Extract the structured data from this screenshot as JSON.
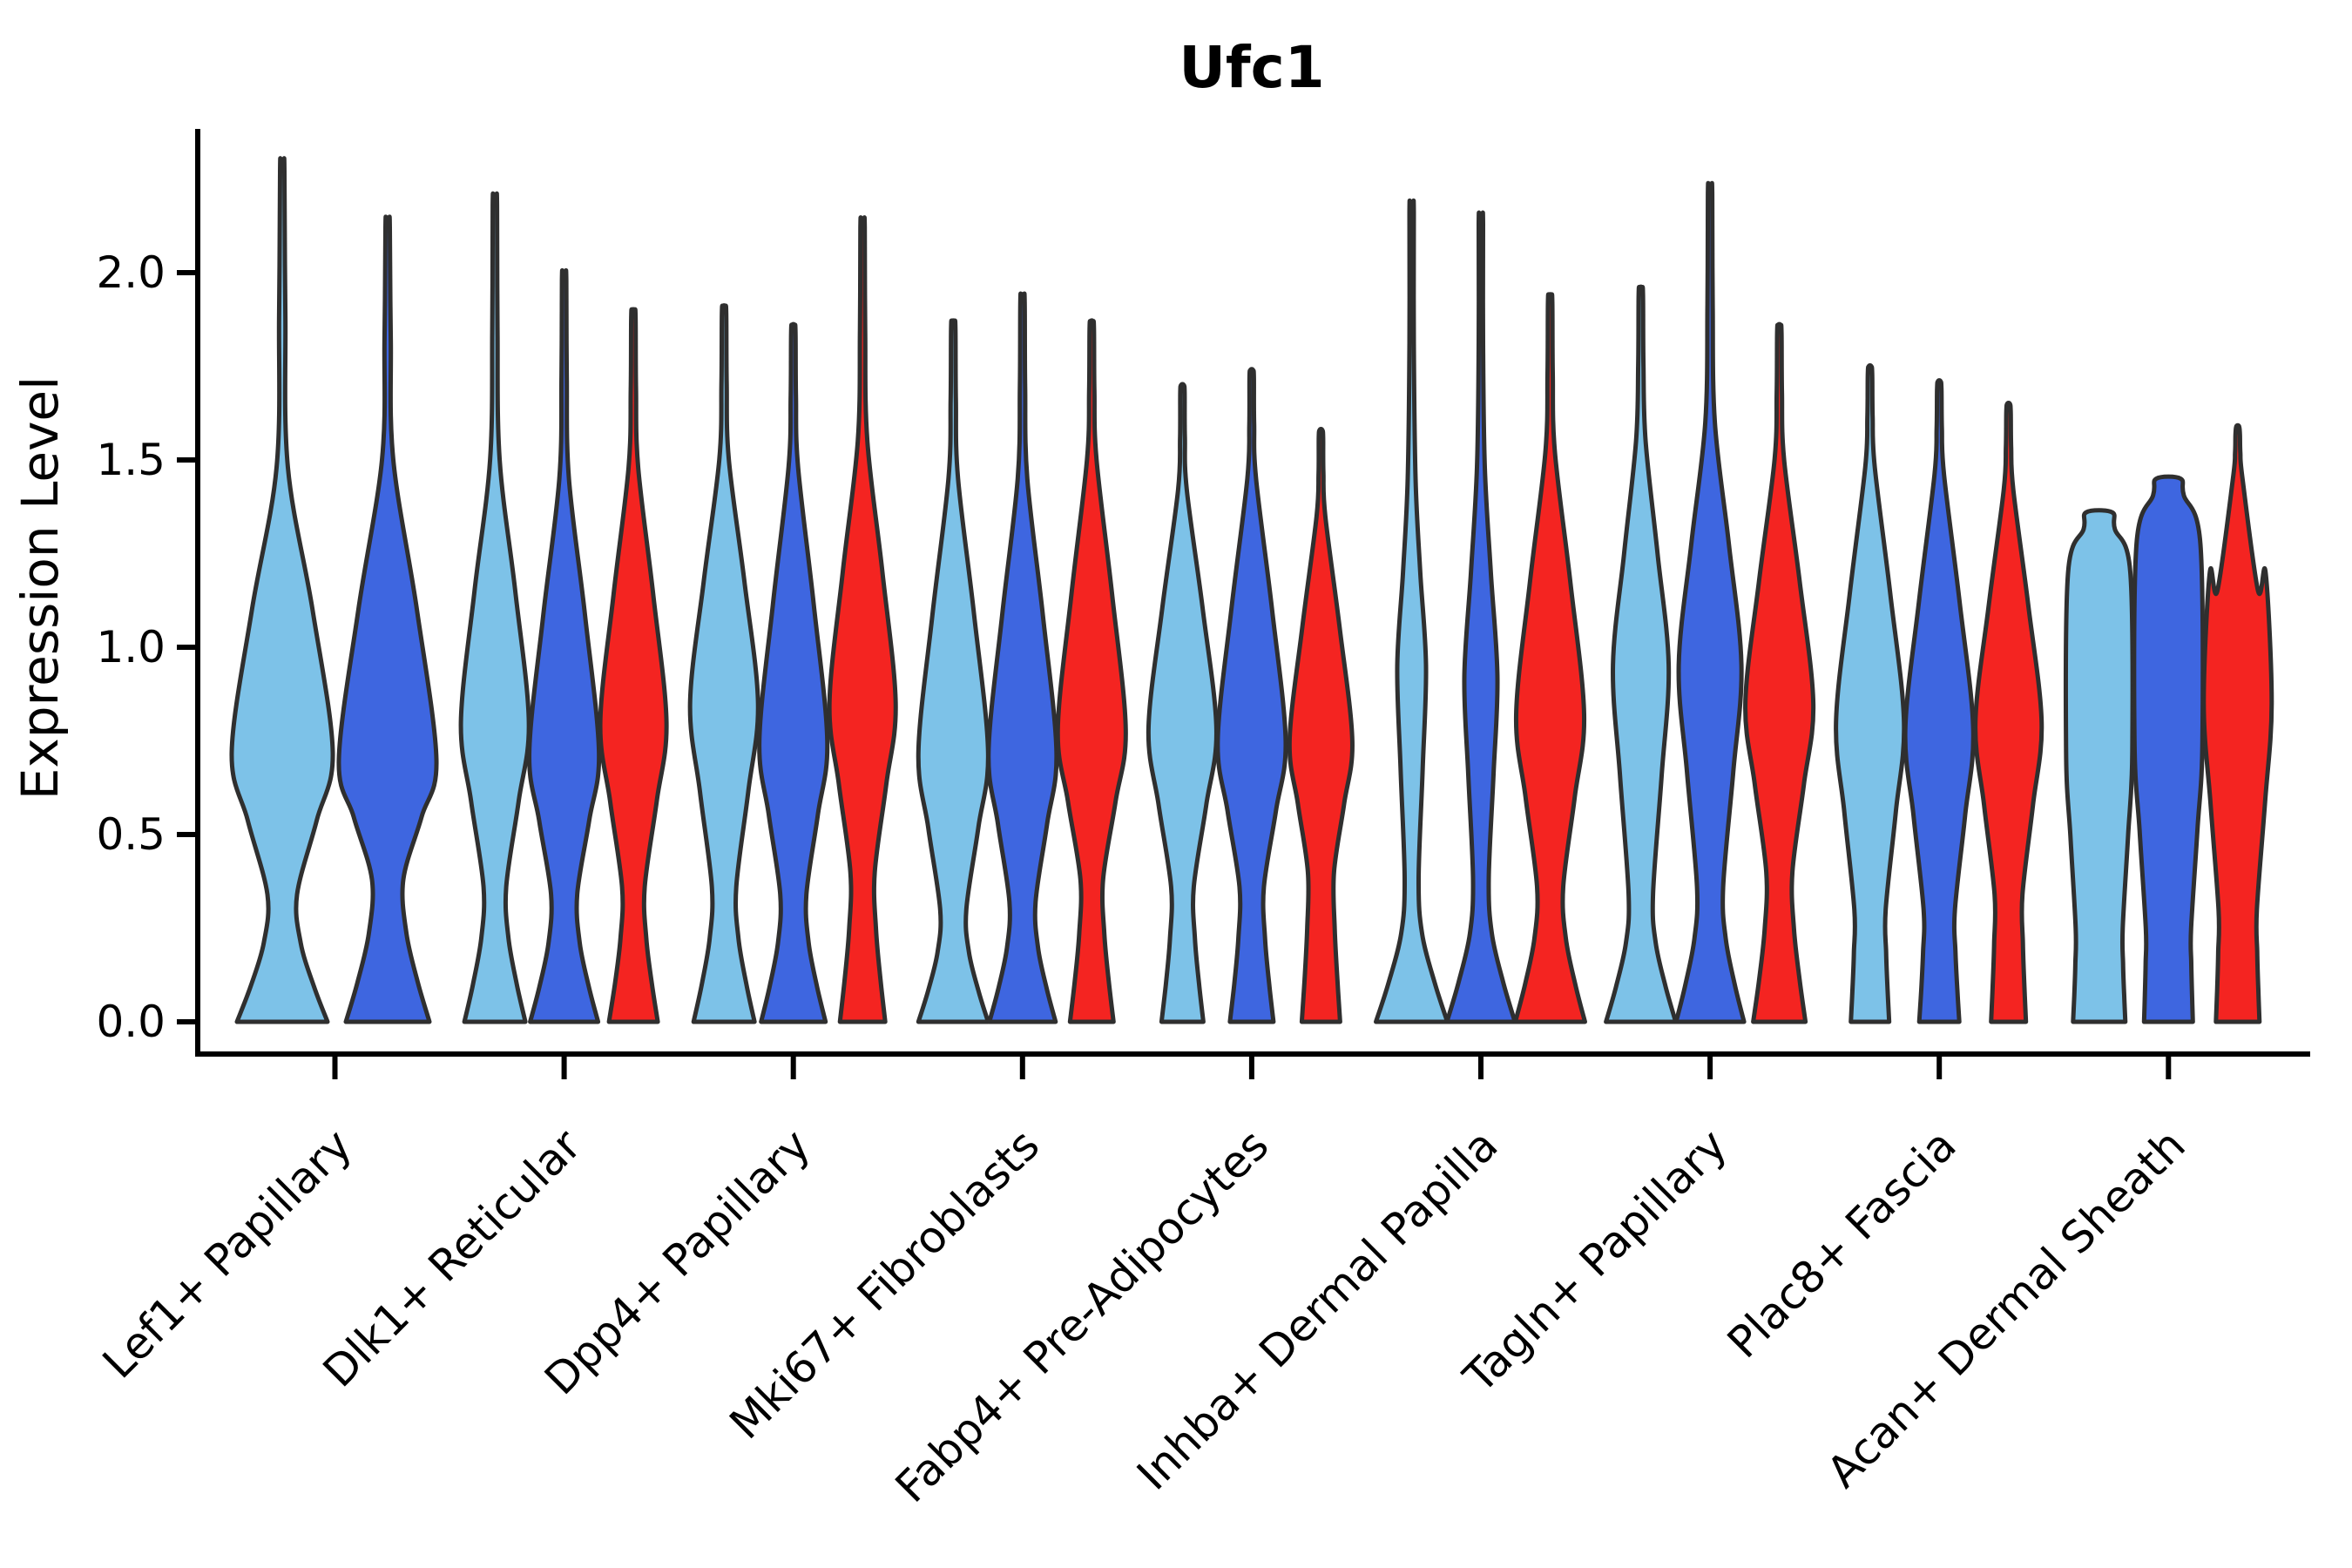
{
  "title": "Ufc1",
  "ylabel": "Expression Level",
  "yticks": [
    "0.0",
    "0.5",
    "1.0",
    "1.5",
    "2.0"
  ],
  "ytick_values": [
    0.0,
    0.5,
    1.0,
    1.5,
    2.0
  ],
  "categories": [
    "Lef1+ Papillary",
    "Dlk1+ Reticular",
    "Dpp4+ Papillary",
    "Mki67+ Fibroblasts",
    "Fabp4+ Pre-Adipocytes",
    "Inhba+ Dermal Papilla",
    "Tagln+ Papillary",
    "Plac8+ Fascia",
    "Acan+ Dermal Sheath"
  ],
  "colors": {
    "light_blue": "#7DC2E8",
    "blue": "#3E66E0",
    "red": "#F42421",
    "stroke": "#2F2F2F",
    "axis": "#000000"
  },
  "chart_data": {
    "type": "violin",
    "title": "Ufc1",
    "xlabel": "",
    "ylabel": "Expression Level",
    "ylim": [
      -0.09,
      2.38
    ],
    "grid": false,
    "legend": null,
    "series_order": [
      "light_blue",
      "blue",
      "red"
    ],
    "categories": [
      "Lef1+ Papillary",
      "Dlk1+ Reticular",
      "Dpp4+ Papillary",
      "Mki67+ Fibroblasts",
      "Fabp4+ Pre-Adipocytes",
      "Inhba+ Dermal Papilla",
      "Tagln+ Papillary",
      "Plac8+ Fascia",
      "Acan+ Dermal Sheath"
    ],
    "violins": [
      {
        "category": 0,
        "series": 0,
        "max": 2.29,
        "profile": {
          "base": 104,
          "neckV": 0.34,
          "neckW": 34,
          "bulgeV": 0.72,
          "W": 116,
          "tailStart": 1.48,
          "tailW": 13
        }
      },
      {
        "category": 0,
        "series": 1,
        "max": 2.14,
        "profile": {
          "base": 96,
          "neckV": 0.38,
          "neckW": 36,
          "bulgeV": 0.7,
          "W": 112,
          "tailStart": 1.5,
          "tailW": 13
        }
      },
      {
        "category": 1,
        "series": 0,
        "max": 2.2,
        "profile": {
          "base": 70,
          "neckV": 0.36,
          "neckW": 26,
          "bulgeV": 0.8,
          "W": 78,
          "tailStart": 1.5,
          "tailW": 11
        }
      },
      {
        "category": 1,
        "series": 1,
        "max": 2.0,
        "profile": {
          "base": 78,
          "neckV": 0.34,
          "neckW": 30,
          "bulgeV": 0.72,
          "W": 80,
          "tailStart": 1.45,
          "tailW": 11
        }
      },
      {
        "category": 1,
        "series": 2,
        "max": 1.9,
        "profile": {
          "base": 56,
          "neckV": 0.36,
          "neckW": 26,
          "bulgeV": 0.8,
          "W": 76,
          "tailStart": 1.48,
          "tailW": 11
        }
      },
      {
        "category": 2,
        "series": 0,
        "max": 1.91,
        "profile": {
          "base": 70,
          "neckV": 0.36,
          "neckW": 28,
          "bulgeV": 0.85,
          "W": 78,
          "tailStart": 1.5,
          "tailW": 11
        }
      },
      {
        "category": 2,
        "series": 1,
        "max": 1.86,
        "profile": {
          "base": 74,
          "neckV": 0.34,
          "neckW": 30,
          "bulgeV": 0.75,
          "W": 78,
          "tailStart": 1.48,
          "tailW": 11
        }
      },
      {
        "category": 2,
        "series": 2,
        "max": 2.14,
        "profile": {
          "base": 52,
          "neckV": 0.4,
          "neckW": 28,
          "bulgeV": 0.85,
          "W": 76,
          "tailStart": 1.55,
          "tailW": 11
        }
      },
      {
        "category": 3,
        "series": 0,
        "max": 1.87,
        "profile": {
          "base": 80,
          "neckV": 0.3,
          "neckW": 30,
          "bulgeV": 0.72,
          "W": 80,
          "tailStart": 1.45,
          "tailW": 11
        }
      },
      {
        "category": 3,
        "series": 1,
        "max": 1.94,
        "profile": {
          "base": 76,
          "neckV": 0.32,
          "neckW": 30,
          "bulgeV": 0.72,
          "W": 78,
          "tailStart": 1.45,
          "tailW": 11
        }
      },
      {
        "category": 3,
        "series": 2,
        "max": 1.87,
        "profile": {
          "base": 50,
          "neckV": 0.38,
          "neckW": 26,
          "bulgeV": 0.78,
          "W": 78,
          "tailStart": 1.5,
          "tailW": 11
        }
      },
      {
        "category": 4,
        "series": 0,
        "max": 1.7,
        "profile": {
          "base": 48,
          "neckV": 0.36,
          "neckW": 26,
          "bulgeV": 0.78,
          "W": 78,
          "tailStart": 1.42,
          "tailW": 10
        }
      },
      {
        "category": 4,
        "series": 1,
        "max": 1.74,
        "profile": {
          "base": 50,
          "neckV": 0.36,
          "neckW": 28,
          "bulgeV": 0.75,
          "W": 78,
          "tailStart": 1.45,
          "tailW": 10
        }
      },
      {
        "category": 4,
        "series": 2,
        "max": 1.58,
        "profile": {
          "base": 44,
          "neckV": 0.4,
          "neckW": 30,
          "bulgeV": 0.75,
          "W": 72,
          "tailStart": 1.35,
          "tailW": 10
        }
      },
      {
        "category": 5,
        "series": 0,
        "max": 2.18,
        "profile": {
          "base": 82,
          "neckV": 0.38,
          "neckW": 16,
          "bulgeV": 0.95,
          "W": 33,
          "tailStart": 1.45,
          "tailW": 9
        }
      },
      {
        "category": 5,
        "series": 1,
        "max": 2.15,
        "profile": {
          "base": 78,
          "neckV": 0.38,
          "neckW": 18,
          "bulgeV": 0.92,
          "W": 38,
          "tailStart": 1.48,
          "tailW": 9
        }
      },
      {
        "category": 5,
        "series": 2,
        "max": 1.94,
        "profile": {
          "base": 80,
          "neckV": 0.36,
          "neckW": 30,
          "bulgeV": 0.82,
          "W": 78,
          "tailStart": 1.52,
          "tailW": 11
        }
      },
      {
        "category": 6,
        "series": 0,
        "max": 1.96,
        "profile": {
          "base": 80,
          "neckV": 0.34,
          "neckW": 28,
          "bulgeV": 0.95,
          "W": 64,
          "tailStart": 1.55,
          "tailW": 11
        }
      },
      {
        "category": 6,
        "series": 1,
        "max": 2.23,
        "profile": {
          "base": 78,
          "neckV": 0.36,
          "neckW": 30,
          "bulgeV": 0.95,
          "W": 72,
          "tailStart": 1.6,
          "tailW": 11
        }
      },
      {
        "category": 6,
        "series": 2,
        "max": 1.86,
        "profile": {
          "base": 60,
          "neckV": 0.4,
          "neckW": 30,
          "bulgeV": 0.85,
          "W": 78,
          "tailStart": 1.5,
          "tailW": 11
        }
      },
      {
        "category": 7,
        "series": 0,
        "max": 1.75,
        "profile": {
          "base": 44,
          "neckV": 0.3,
          "neckW": 36,
          "bulgeV": 0.8,
          "W": 78,
          "tailStart": 1.48,
          "tailW": 11
        }
      },
      {
        "category": 7,
        "series": 1,
        "max": 1.71,
        "profile": {
          "base": 46,
          "neckV": 0.3,
          "neckW": 36,
          "bulgeV": 0.78,
          "W": 78,
          "tailStart": 1.46,
          "tailW": 11
        }
      },
      {
        "category": 7,
        "series": 2,
        "max": 1.65,
        "profile": {
          "base": 40,
          "neckV": 0.34,
          "neckW": 32,
          "bulgeV": 0.8,
          "W": 76,
          "tailStart": 1.42,
          "tailW": 11
        }
      },
      {
        "category": 8,
        "series": 0,
        "max": 1.36,
        "profile": {
          "base": 60,
          "neckV": 0.25,
          "neckW": 54,
          "bulgeV": 0.72,
          "W": 76,
          "flatTop": true,
          "topW": 30
        }
      },
      {
        "category": 8,
        "series": 1,
        "max": 1.45,
        "profile": {
          "base": 56,
          "neckV": 0.25,
          "neckW": 52,
          "bulgeV": 0.75,
          "W": 78,
          "flatTop": true,
          "topW": 28
        }
      },
      {
        "category": 8,
        "series": 2,
        "max": 1.59,
        "profile": {
          "base": 50,
          "neckV": 0.3,
          "neckW": 44,
          "bulgeV": 0.85,
          "W": 78,
          "extra": [
            [
              1.2,
              64
            ]
          ],
          "tailStart": 1.45,
          "tailW": 11
        }
      }
    ]
  }
}
